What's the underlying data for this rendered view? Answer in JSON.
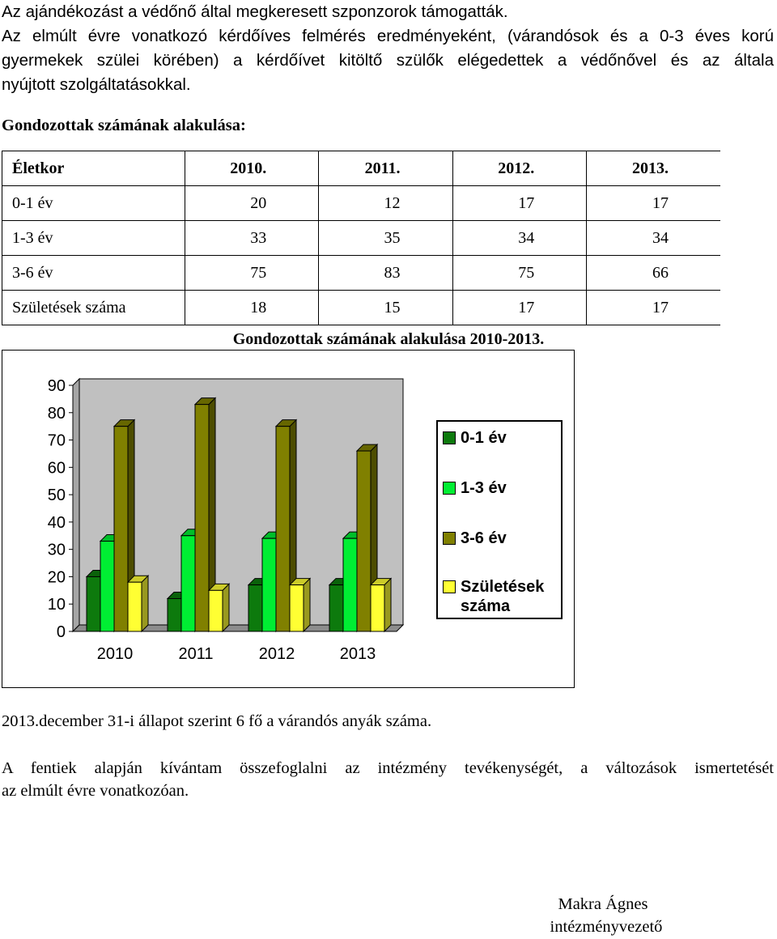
{
  "text": {
    "line1": "Az ajándékozást a védőnő által megkeresett szponzorok támogatták.",
    "para2_line1": "Az elmúlt évre vonatkozó kérdőíves felmérés eredményeként, (várandósok és a 0-3 éves korú",
    "para2_line2": "gyermekek szülei körében) a kérdőívet kitöltő szülők elégedettek a védőnővel és az általa",
    "para2_line3": "nyújtott szolgáltatásokkal.",
    "section_title": "Gondozottak számának alakulása:",
    "note": "2013.december 31-i állapot szerint 6 fő a várandós anyák száma.",
    "closing_line1": "A fentiek alapján kívántam összefoglalni az intézmény tevékenységét, a változások ismertetését",
    "closing_line2": "az elmúlt évre vonatkozóan.",
    "signature_name": "Makra Ágnes",
    "signature_title": "intézményvezető"
  },
  "table": {
    "headers": [
      "Életkor",
      "2010.",
      "2011.",
      "2012.",
      "2013."
    ],
    "rows": [
      [
        "0-1 év",
        "20",
        "12",
        "17",
        "17"
      ],
      [
        "1-3 év",
        "33",
        "35",
        "34",
        "34"
      ],
      [
        "3-6 év",
        "75",
        "83",
        "75",
        "66"
      ],
      [
        "Születések száma",
        "18",
        "15",
        "17",
        "17"
      ]
    ]
  },
  "chart_data": {
    "type": "bar",
    "title": "Gondozottak számának alakulása 2010-2013.",
    "categories": [
      "2010",
      "2011",
      "2012",
      "2013"
    ],
    "series": [
      {
        "name": "0-1 év",
        "values": [
          20,
          12,
          17,
          17
        ],
        "color": "#0d7a0d"
      },
      {
        "name": "1-3 év",
        "values": [
          33,
          35,
          34,
          34
        ],
        "color": "#00ee33"
      },
      {
        "name": "3-6 év",
        "values": [
          75,
          83,
          75,
          66
        ],
        "color": "#808000"
      },
      {
        "name": "Születések száma",
        "values": [
          18,
          15,
          17,
          17
        ],
        "color": "#ffff33"
      }
    ],
    "ylim": [
      0,
      90
    ],
    "yticks": [
      0,
      10,
      20,
      30,
      40,
      50,
      60,
      70,
      80,
      90
    ],
    "grid": false,
    "legend": "right",
    "wall_color": "#c0c0c0"
  }
}
